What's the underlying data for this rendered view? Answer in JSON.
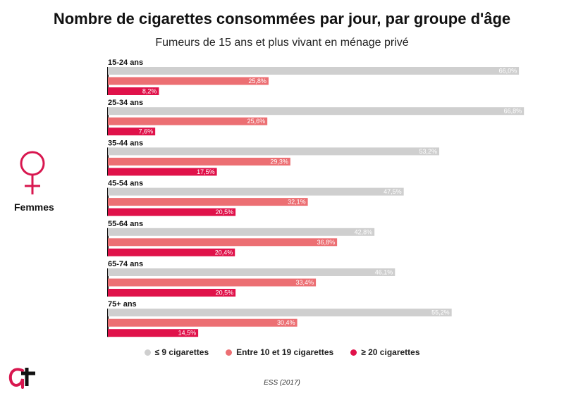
{
  "chart_data": {
    "type": "bar",
    "orientation": "horizontal",
    "title": "Nombre de cigarettes consommées par jour, par groupe d'âge",
    "subtitle": "Fumeurs de 15 ans et plus vivant en ménage privé",
    "group_label": "Femmes",
    "source": "ESS (2017)",
    "categories": [
      "15-24 ans",
      "25-34 ans",
      "35-44 ans",
      "45-54 ans",
      "55-64 ans",
      "65-74 ans",
      "75+ ans"
    ],
    "series": [
      {
        "name": "≤ 9 cigarettes",
        "color": "#cfcfcf",
        "values": [
          66.0,
          66.8,
          53.2,
          47.5,
          42.8,
          46.1,
          55.2
        ],
        "labels": [
          "66,0%",
          "66,8%",
          "53,2%",
          "47,5%",
          "42,8%",
          "46,1%",
          "55,2%"
        ]
      },
      {
        "name": "Entre 10 et 19 cigarettes",
        "color": "#ec6f73",
        "values": [
          25.8,
          25.6,
          29.3,
          32.1,
          36.8,
          33.4,
          30.4
        ],
        "labels": [
          "25,8%",
          "25,6%",
          "29,3%",
          "32,1%",
          "36,8%",
          "33,4%",
          "30,4%"
        ]
      },
      {
        "name": "≥ 20 cigarettes",
        "color": "#e0124a",
        "values": [
          8.2,
          7.6,
          17.5,
          20.5,
          20.4,
          20.5,
          14.5
        ],
        "labels": [
          "8,2%",
          "7,6%",
          "17,5%",
          "20,5%",
          "20,4%",
          "20,5%",
          "14,5%"
        ]
      }
    ],
    "xlim": [
      0,
      67
    ],
    "grid": false,
    "legend_position": "bottom"
  },
  "colors": {
    "accent": "#d8174f",
    "axis": "#111111"
  },
  "icons": {
    "side": "female-symbol-icon",
    "logo": "at-logo-icon"
  }
}
